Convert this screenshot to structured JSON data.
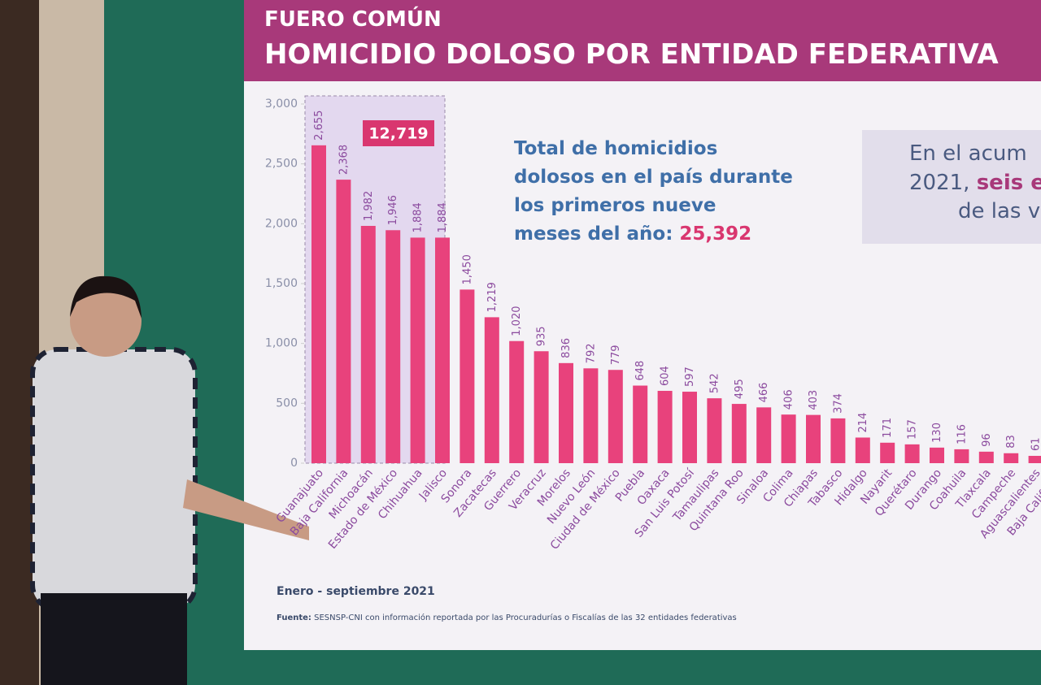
{
  "chart_data": {
    "type": "bar",
    "header": {
      "kicker": "FUERO COMÚN",
      "title": "HOMICIDIO DOLOSO POR ENTIDAD FEDERATIVA"
    },
    "highlight": "12,719",
    "note": {
      "text": [
        "Total de homicidios",
        "dolosos en el país durante",
        "los primeros nueve",
        "meses del año: "
      ],
      "total": "25,392"
    },
    "side_note": {
      "line1": "En el acum",
      "line2a": "2021, ",
      "line2b": "seis es",
      "line3": "de las v"
    },
    "period": "Enero - septiembre 2021",
    "source_label": "Fuente:",
    "source": " SESNSP-CNI con información reportada por las Procuradurías o Fiscalías de las 32 entidades federativas",
    "categories": [
      "Guanajuato",
      "Baja California",
      "Michoacán",
      "Estado de México",
      "Chihuahua",
      "Jalisco",
      "Sonora",
      "Zacatecas",
      "Guerrero",
      "Veracruz",
      "Morelos",
      "Nuevo León",
      "Ciudad de México",
      "Puebla",
      "Oaxaca",
      "San Luis Potosí",
      "Tamaulipas",
      "Quintana Roo",
      "Sinaloa",
      "Colima",
      "Chiapas",
      "Tabasco",
      "Hidalgo",
      "Nayarit",
      "Querétaro",
      "Durango",
      "Coahuila",
      "Tlaxcala",
      "Campeche",
      "Aguascalientes",
      "Baja California"
    ],
    "values": [
      2655,
      2368,
      1982,
      1946,
      1884,
      1884,
      1450,
      1219,
      1020,
      935,
      836,
      792,
      779,
      648,
      604,
      597,
      542,
      495,
      466,
      406,
      403,
      374,
      214,
      171,
      157,
      130,
      116,
      96,
      83,
      61,
      null
    ],
    "value_labels": [
      "2,655",
      "2,368",
      "1,982",
      "1,946",
      "1,884",
      "1,884",
      "1,450",
      "1,219",
      "1,020",
      "935",
      "836",
      "792",
      "779",
      "648",
      "604",
      "597",
      "542",
      "495",
      "466",
      "406",
      "403",
      "374",
      "214",
      "171",
      "157",
      "130",
      "116",
      "96",
      "83",
      "61",
      null
    ],
    "color": "#e8427c",
    "ylim": [
      0,
      3000
    ],
    "yticks": [
      0,
      500,
      {
        "value": 1000,
        "label": "1,000"
      },
      {
        "value": 1500,
        "label": "1,500"
      },
      {
        "value": 2000,
        "label": "2,000"
      },
      {
        "value": 2500,
        "label": "2,500"
      },
      {
        "value": 3000,
        "label": "3,000"
      }
    ]
  }
}
